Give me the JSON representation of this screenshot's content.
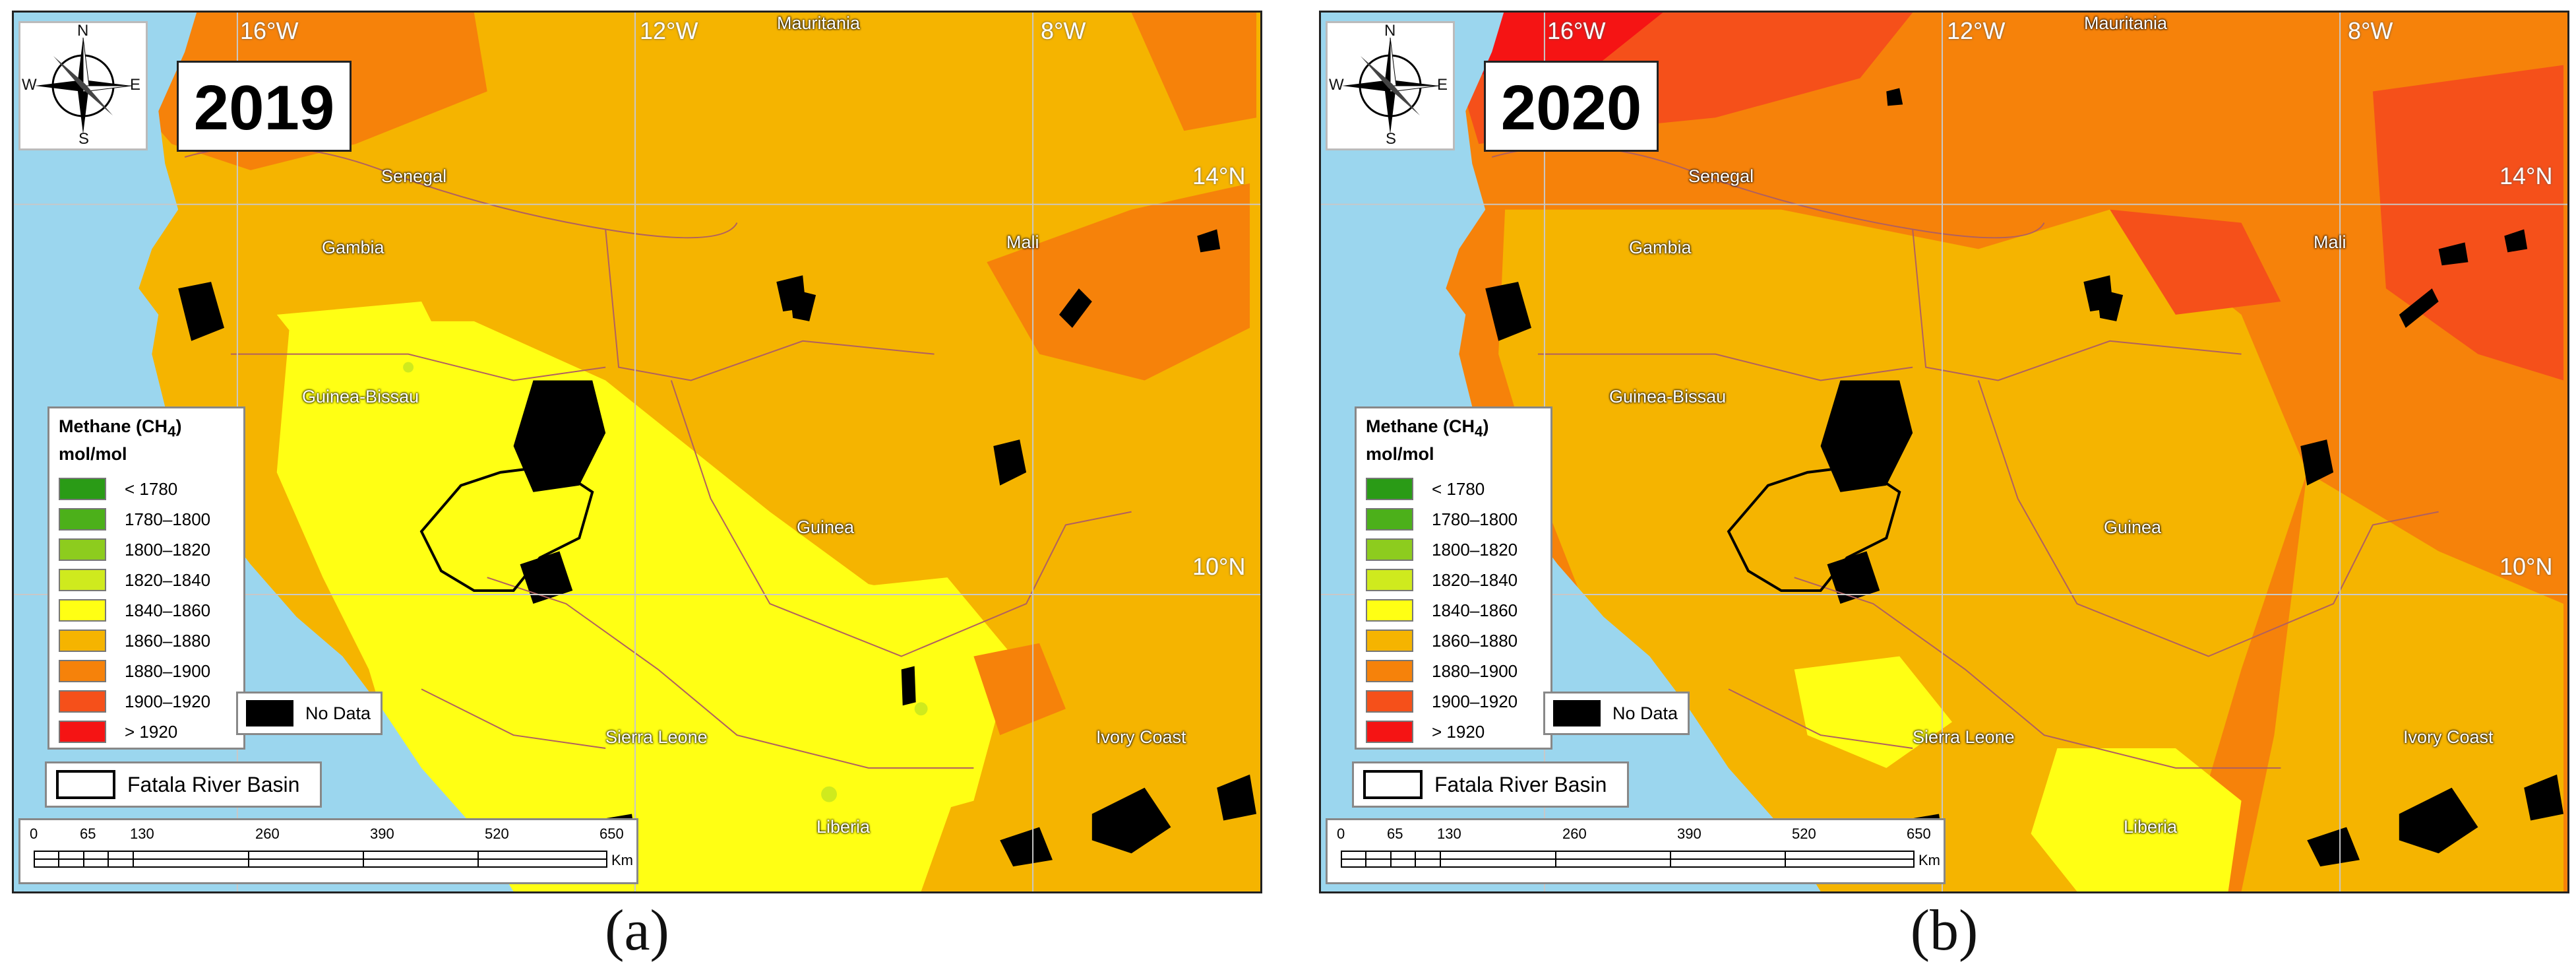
{
  "panels": [
    {
      "caption": "(a)",
      "year": "2019",
      "longitudes": [
        "16°W",
        "12°W",
        "8°W"
      ],
      "latitudes": [
        "14°N",
        "10°N"
      ],
      "countries": [
        "Mauritania",
        "Senegal",
        "Gambia",
        "Mali",
        "Guinea-Bissau",
        "Guinea",
        "Sierra Leone",
        "Ivory Coast",
        "Liberia"
      ]
    },
    {
      "caption": "(b)",
      "year": "2020",
      "longitudes": [
        "16°W",
        "12°W",
        "8°W"
      ],
      "latitudes": [
        "14°N",
        "10°N"
      ],
      "countries": [
        "Mauritania",
        "Senegal",
        "Gambia",
        "Mali",
        "Guinea-Bissau",
        "Guinea",
        "Sierra Leone",
        "Ivory Coast",
        "Liberia"
      ]
    }
  ],
  "compass": {
    "n": "N",
    "s": "S",
    "e": "E",
    "w": "W"
  },
  "legend": {
    "title_main": "Methane (CH",
    "title_sub": "4",
    "title_end": ")",
    "unit": "mol/mol",
    "classes": [
      {
        "label": "< 1780",
        "color": "#2a9b16"
      },
      {
        "label": "1780–1800",
        "color": "#4cb01a"
      },
      {
        "label": "1800–1820",
        "color": "#8dcc1e"
      },
      {
        "label": "1820–1840",
        "color": "#cfea1e"
      },
      {
        "label": "1840–1860",
        "color": "#ffff14"
      },
      {
        "label": "1860–1880",
        "color": "#f5b400"
      },
      {
        "label": "1880–1900",
        "color": "#f6820a"
      },
      {
        "label": "1900–1920",
        "color": "#f5501a"
      },
      {
        "label": "> 1920",
        "color": "#f51414"
      }
    ],
    "nodata_label": "No Data",
    "nodata_color": "#000000",
    "basin_label": "Fatala River Basin"
  },
  "scalebar": {
    "ticks": [
      "0",
      "65",
      "130",
      "260",
      "390",
      "520",
      "650"
    ],
    "unit": "Km"
  },
  "colors": {
    "ocean": "#9bd6ee",
    "grid": "#c8c8c8"
  }
}
